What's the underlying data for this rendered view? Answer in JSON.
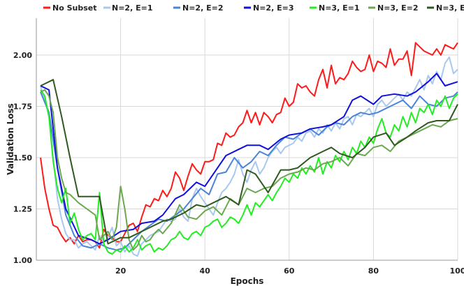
{
  "chart_data": {
    "type": "line",
    "xlabel": "Epochs",
    "ylabel": "Validation Loss",
    "xlim": [
      0,
      100
    ],
    "ylim": [
      1.0,
      2.18
    ],
    "x_ticks": [
      20,
      40,
      60,
      80,
      100
    ],
    "y_ticks": [
      1.0,
      1.25,
      1.5,
      1.75,
      2.0
    ],
    "grid": true,
    "legend_position": "top",
    "series": [
      {
        "name": "No Subset",
        "color": "#ff1a1a",
        "x": [
          1,
          2,
          3,
          4,
          5,
          6,
          7,
          8,
          9,
          10,
          11,
          12,
          13,
          14,
          15,
          16,
          17,
          18,
          19,
          20,
          21,
          22,
          23,
          24,
          25,
          26,
          27,
          28,
          29,
          30,
          31,
          32,
          33,
          34,
          35,
          36,
          37,
          38,
          39,
          40,
          41,
          42,
          43,
          44,
          45,
          46,
          47,
          48,
          49,
          50,
          51,
          52,
          53,
          54,
          55,
          56,
          57,
          58,
          59,
          60,
          61,
          62,
          63,
          64,
          65,
          66,
          67,
          68,
          69,
          70,
          71,
          72,
          73,
          74,
          75,
          76,
          77,
          78,
          79,
          80,
          81,
          82,
          83,
          84,
          85,
          86,
          87,
          88,
          89,
          90,
          91,
          92,
          93,
          94,
          95,
          96,
          97,
          98,
          99,
          100
        ],
        "y": [
          1.5,
          1.35,
          1.25,
          1.17,
          1.16,
          1.12,
          1.09,
          1.11,
          1.08,
          1.12,
          1.09,
          1.1,
          1.1,
          1.09,
          1.06,
          1.15,
          1.12,
          1.11,
          1.09,
          1.09,
          1.13,
          1.17,
          1.18,
          1.14,
          1.21,
          1.27,
          1.26,
          1.3,
          1.29,
          1.34,
          1.31,
          1.35,
          1.43,
          1.4,
          1.34,
          1.41,
          1.47,
          1.44,
          1.42,
          1.48,
          1.48,
          1.49,
          1.57,
          1.56,
          1.62,
          1.6,
          1.61,
          1.65,
          1.67,
          1.73,
          1.67,
          1.72,
          1.66,
          1.72,
          1.7,
          1.67,
          1.71,
          1.72,
          1.79,
          1.75,
          1.77,
          1.86,
          1.84,
          1.85,
          1.82,
          1.8,
          1.88,
          1.93,
          1.84,
          1.95,
          1.86,
          1.89,
          1.88,
          1.91,
          1.97,
          1.94,
          1.92,
          1.93,
          2.0,
          1.92,
          1.97,
          1.96,
          1.94,
          2.03,
          1.95,
          1.98,
          1.98,
          2.02,
          1.9,
          2.06,
          2.04,
          2.02,
          2.01,
          2.0,
          2.03,
          2.0,
          2.05,
          2.04,
          2.03,
          2.06
        ]
      },
      {
        "name": "N=2, E=1",
        "color": "#a8c8f0",
        "x": [
          1,
          2,
          3,
          4,
          5,
          6,
          7,
          8,
          9,
          10,
          11,
          12,
          13,
          14,
          15,
          16,
          17,
          18,
          19,
          20,
          21,
          22,
          23,
          24,
          25,
          26,
          27,
          28,
          29,
          30,
          31,
          32,
          33,
          34,
          35,
          36,
          37,
          38,
          39,
          40,
          41,
          42,
          43,
          44,
          45,
          46,
          47,
          48,
          49,
          50,
          51,
          52,
          53,
          54,
          55,
          56,
          57,
          58,
          59,
          60,
          61,
          62,
          63,
          64,
          65,
          66,
          67,
          68,
          69,
          70,
          71,
          72,
          73,
          74,
          75,
          76,
          77,
          78,
          79,
          80,
          81,
          82,
          83,
          84,
          85,
          86,
          87,
          88,
          89,
          90,
          91,
          92,
          93,
          94,
          95,
          96,
          97,
          98,
          99,
          100
        ],
        "y": [
          1.85,
          1.78,
          1.7,
          1.5,
          1.3,
          1.2,
          1.13,
          1.1,
          1.1,
          1.06,
          1.08,
          1.09,
          1.07,
          1.05,
          1.12,
          1.09,
          1.11,
          1.16,
          1.07,
          1.09,
          1.04,
          1.07,
          1.03,
          1.02,
          1.08,
          1.1,
          1.12,
          1.13,
          1.14,
          1.17,
          1.2,
          1.19,
          1.2,
          1.25,
          1.21,
          1.19,
          1.3,
          1.35,
          1.31,
          1.28,
          1.25,
          1.22,
          1.28,
          1.33,
          1.35,
          1.38,
          1.42,
          1.49,
          1.42,
          1.38,
          1.44,
          1.48,
          1.42,
          1.45,
          1.5,
          1.53,
          1.55,
          1.52,
          1.55,
          1.56,
          1.57,
          1.6,
          1.58,
          1.62,
          1.63,
          1.6,
          1.64,
          1.62,
          1.66,
          1.63,
          1.67,
          1.64,
          1.69,
          1.7,
          1.66,
          1.71,
          1.7,
          1.72,
          1.74,
          1.7,
          1.76,
          1.78,
          1.75,
          1.77,
          1.79,
          1.81,
          1.78,
          1.82,
          1.8,
          1.84,
          1.88,
          1.83,
          1.9,
          1.86,
          1.92,
          1.88,
          1.96,
          1.99,
          1.91,
          1.93
        ]
      },
      {
        "name": "N=2, E=2",
        "color": "#4a84d8",
        "x": [
          1,
          3,
          5,
          7,
          9,
          11,
          13,
          15,
          17,
          19,
          21,
          23,
          25,
          27,
          29,
          31,
          33,
          35,
          37,
          39,
          41,
          43,
          45,
          47,
          49,
          51,
          53,
          55,
          57,
          59,
          61,
          63,
          65,
          67,
          69,
          71,
          73,
          75,
          77,
          79,
          81,
          83,
          85,
          87,
          89,
          91,
          93,
          95,
          97,
          99,
          100
        ],
        "y": [
          1.82,
          1.72,
          1.45,
          1.22,
          1.12,
          1.07,
          1.06,
          1.08,
          1.06,
          1.05,
          1.06,
          1.1,
          1.14,
          1.17,
          1.2,
          1.19,
          1.22,
          1.25,
          1.3,
          1.35,
          1.32,
          1.42,
          1.43,
          1.5,
          1.45,
          1.48,
          1.53,
          1.51,
          1.56,
          1.6,
          1.59,
          1.62,
          1.64,
          1.61,
          1.65,
          1.67,
          1.66,
          1.7,
          1.72,
          1.71,
          1.72,
          1.74,
          1.76,
          1.78,
          1.74,
          1.8,
          1.76,
          1.75,
          1.79,
          1.8,
          1.82
        ]
      },
      {
        "name": "N=2, E=3",
        "color": "#1010dd",
        "x": [
          1,
          3,
          5,
          7,
          10,
          13,
          15,
          17,
          20,
          23,
          25,
          28,
          30,
          33,
          35,
          38,
          40,
          43,
          45,
          48,
          50,
          53,
          55,
          58,
          60,
          63,
          65,
          68,
          70,
          73,
          75,
          77,
          80,
          82,
          85,
          88,
          90,
          93,
          95,
          97,
          100
        ],
        "y": [
          1.85,
          1.83,
          1.45,
          1.25,
          1.12,
          1.1,
          1.08,
          1.1,
          1.14,
          1.15,
          1.18,
          1.19,
          1.22,
          1.3,
          1.32,
          1.38,
          1.36,
          1.45,
          1.51,
          1.54,
          1.56,
          1.56,
          1.54,
          1.59,
          1.61,
          1.62,
          1.64,
          1.65,
          1.66,
          1.7,
          1.78,
          1.8,
          1.76,
          1.8,
          1.81,
          1.8,
          1.82,
          1.87,
          1.91,
          1.85,
          1.87
        ]
      },
      {
        "name": "N=3, E=1",
        "color": "#22ee22",
        "x": [
          1,
          2,
          3,
          4,
          5,
          6,
          7,
          8,
          9,
          10,
          11,
          12,
          13,
          14,
          15,
          16,
          17,
          18,
          19,
          20,
          21,
          22,
          23,
          24,
          25,
          26,
          27,
          28,
          29,
          30,
          31,
          32,
          33,
          34,
          35,
          36,
          37,
          38,
          39,
          40,
          41,
          42,
          43,
          44,
          45,
          46,
          47,
          48,
          49,
          50,
          51,
          52,
          53,
          54,
          55,
          56,
          57,
          58,
          59,
          60,
          61,
          62,
          63,
          64,
          65,
          66,
          67,
          68,
          69,
          70,
          71,
          72,
          73,
          74,
          75,
          76,
          77,
          78,
          79,
          80,
          81,
          82,
          83,
          84,
          85,
          86,
          87,
          88,
          89,
          90,
          91,
          92,
          93,
          94,
          95,
          96,
          97,
          98,
          99,
          100
        ],
        "y": [
          1.83,
          1.8,
          1.7,
          1.48,
          1.35,
          1.28,
          1.35,
          1.18,
          1.23,
          1.15,
          1.1,
          1.12,
          1.13,
          1.1,
          1.33,
          1.08,
          1.04,
          1.03,
          1.05,
          1.04,
          1.07,
          1.04,
          1.06,
          1.1,
          1.05,
          1.07,
          1.08,
          1.04,
          1.06,
          1.05,
          1.07,
          1.1,
          1.11,
          1.14,
          1.11,
          1.1,
          1.13,
          1.14,
          1.12,
          1.16,
          1.17,
          1.19,
          1.2,
          1.16,
          1.18,
          1.21,
          1.2,
          1.18,
          1.22,
          1.27,
          1.22,
          1.28,
          1.26,
          1.29,
          1.32,
          1.29,
          1.33,
          1.36,
          1.4,
          1.38,
          1.42,
          1.4,
          1.45,
          1.42,
          1.46,
          1.43,
          1.5,
          1.42,
          1.48,
          1.45,
          1.51,
          1.48,
          1.53,
          1.49,
          1.55,
          1.52,
          1.58,
          1.55,
          1.6,
          1.57,
          1.64,
          1.69,
          1.62,
          1.6,
          1.66,
          1.63,
          1.7,
          1.65,
          1.72,
          1.67,
          1.74,
          1.72,
          1.76,
          1.71,
          1.78,
          1.75,
          1.8,
          1.74,
          1.79,
          1.81
        ]
      },
      {
        "name": "N=3, E=2",
        "color": "#6aa84f",
        "x": [
          1,
          2,
          3,
          4,
          5,
          6,
          7,
          8,
          10,
          12,
          14,
          15,
          16,
          17,
          18,
          19,
          20,
          21,
          22,
          23,
          24,
          25,
          26,
          27,
          28,
          29,
          30,
          32,
          34,
          36,
          38,
          40,
          42,
          44,
          46,
          48,
          50,
          52,
          54,
          56,
          58,
          60,
          62,
          64,
          66,
          68,
          70,
          72,
          74,
          76,
          78,
          80,
          82,
          84,
          86,
          88,
          90,
          92,
          94,
          96,
          98,
          100
        ],
        "y": [
          1.82,
          1.83,
          1.8,
          1.72,
          1.5,
          1.4,
          1.33,
          1.32,
          1.28,
          1.25,
          1.22,
          1.1,
          1.12,
          1.14,
          1.1,
          1.16,
          1.36,
          1.25,
          1.1,
          1.05,
          1.07,
          1.12,
          1.09,
          1.1,
          1.13,
          1.15,
          1.13,
          1.18,
          1.27,
          1.21,
          1.2,
          1.24,
          1.26,
          1.22,
          1.3,
          1.27,
          1.35,
          1.33,
          1.35,
          1.36,
          1.4,
          1.42,
          1.43,
          1.45,
          1.44,
          1.47,
          1.48,
          1.5,
          1.46,
          1.52,
          1.51,
          1.55,
          1.56,
          1.53,
          1.58,
          1.6,
          1.62,
          1.64,
          1.66,
          1.65,
          1.68,
          1.69
        ]
      },
      {
        "name": "N=3, E=3",
        "color": "#2f5a1e",
        "x": [
          1,
          2,
          4,
          6,
          8,
          10,
          12,
          15,
          17,
          20,
          22,
          24,
          26,
          28,
          30,
          32,
          35,
          38,
          40,
          43,
          45,
          48,
          50,
          52,
          55,
          58,
          60,
          62,
          65,
          68,
          70,
          72,
          75,
          78,
          80,
          83,
          85,
          88,
          90,
          93,
          95,
          98,
          100
        ],
        "y": [
          1.85,
          1.86,
          1.88,
          1.7,
          1.5,
          1.31,
          1.31,
          1.31,
          1.08,
          1.11,
          1.11,
          1.13,
          1.15,
          1.17,
          1.19,
          1.2,
          1.23,
          1.27,
          1.26,
          1.29,
          1.31,
          1.27,
          1.44,
          1.42,
          1.33,
          1.44,
          1.44,
          1.45,
          1.5,
          1.53,
          1.55,
          1.52,
          1.5,
          1.55,
          1.6,
          1.62,
          1.56,
          1.6,
          1.63,
          1.67,
          1.68,
          1.68,
          1.76
        ]
      }
    ]
  }
}
